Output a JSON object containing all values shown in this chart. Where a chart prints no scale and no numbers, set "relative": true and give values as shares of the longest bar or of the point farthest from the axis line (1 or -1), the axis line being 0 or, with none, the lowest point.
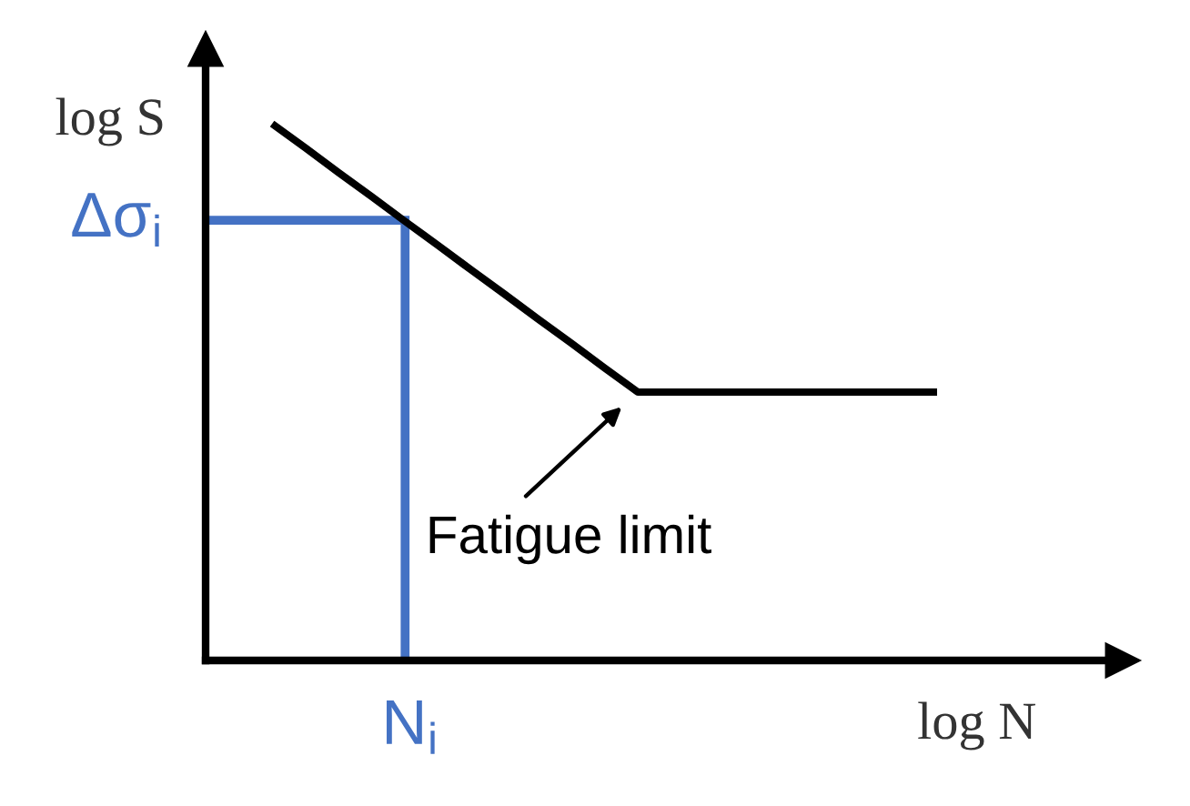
{
  "chart_data": {
    "type": "line",
    "xlabel": "log N",
    "ylabel": "log S",
    "relative": true,
    "categories": [
      null,
      null,
      null,
      null,
      null,
      null,
      null,
      null,
      null,
      null,
      null,
      null,
      null,
      null,
      null,
      null,
      null,
      null,
      null,
      null,
      null,
      null,
      null
    ],
    "series": [
      {
        "type": "step",
        "color": "#4472c4",
        "values": [
          0.82,
          0.82,
          0.82,
          0.82,
          0.82,
          0.82,
          0,
          null,
          null,
          null,
          null,
          null,
          null,
          null,
          null,
          null,
          null,
          null,
          null,
          null,
          null,
          null,
          null
        ]
      },
      {
        "color": "#000000",
        "values": [
          null,
          null,
          1.0,
          0.955,
          0.909,
          0.864,
          0.818,
          0.773,
          0.727,
          0.682,
          0.636,
          0.591,
          0.545,
          0.5,
          0.5,
          0.5,
          0.5,
          0.5,
          0.5,
          0.5,
          0.5,
          0.5,
          0.5
        ]
      }
    ],
    "annotations": [
      "Fatigue limit",
      "Δσ$_{i}$",
      {
        "text": "N$_{i}$",
        "y": 0
      }
    ],
    "marker": "none",
    "line_style": "solid"
  }
}
